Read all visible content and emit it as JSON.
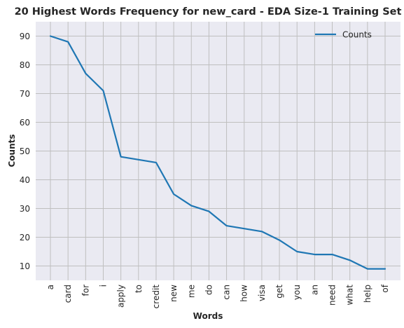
{
  "chart_data": {
    "type": "line",
    "title": "20 Highest Words Frequency for new_card - EDA Size-1 Training Set",
    "xlabel": "Words",
    "ylabel": "Counts",
    "categories": [
      "a",
      "card",
      "for",
      "i",
      "apply",
      "to",
      "credit",
      "new",
      "me",
      "do",
      "can",
      "how",
      "visa",
      "get",
      "you",
      "an",
      "need",
      "what",
      "help",
      "of"
    ],
    "series": [
      {
        "name": "Counts",
        "values": [
          90,
          88,
          77,
          71,
          48,
          47,
          46,
          35,
          31,
          29,
          24,
          23,
          22,
          19,
          15,
          14,
          14,
          12,
          9,
          9
        ]
      }
    ],
    "ylim": [
      5,
      95
    ],
    "yticks": [
      10,
      20,
      30,
      40,
      50,
      60,
      70,
      80,
      90
    ],
    "grid": true,
    "legend_position": "top-right",
    "colors": {
      "line": "#1f77b4",
      "plot_bg": "#eaeaf2",
      "grid": "#bfbfbf",
      "text": "#262626"
    }
  }
}
